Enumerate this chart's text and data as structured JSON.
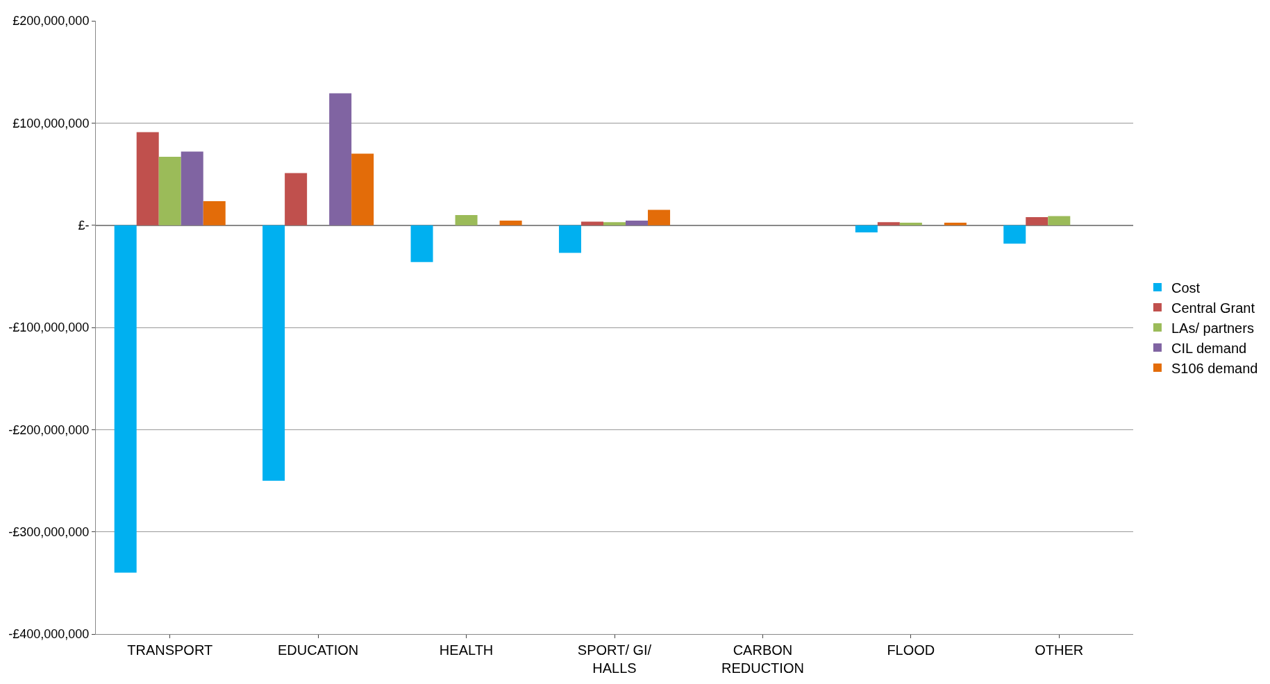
{
  "chart_data": {
    "type": "bar",
    "categories": [
      "TRANSPORT",
      "EDUCATION",
      "HEALTH",
      "SPORT/ GI/ HALLS",
      "CARBON REDUCTION",
      "FLOOD",
      "OTHER"
    ],
    "series": [
      {
        "name": "Cost",
        "color": "#00b0f0",
        "values": [
          -340000000,
          -250000000,
          -36000000,
          -27000000,
          null,
          -7000000,
          -18000000
        ]
      },
      {
        "name": "Central Grant",
        "color": "#c0504d",
        "values": [
          91000000,
          51000000,
          null,
          3500000,
          null,
          3000000,
          8000000
        ]
      },
      {
        "name": "LAs/ partners",
        "color": "#9bbb59",
        "values": [
          67000000,
          null,
          10000000,
          3000000,
          null,
          2500000,
          9000000
        ]
      },
      {
        "name": "CIL demand",
        "color": "#8064a2",
        "values": [
          72000000,
          129000000,
          null,
          4500000,
          null,
          null,
          null
        ]
      },
      {
        "name": "S106 demand",
        "color": "#e36c09",
        "values": [
          23500000,
          70000000,
          4500000,
          15000000,
          null,
          2500000,
          null
        ]
      }
    ],
    "ylim": [
      -400000000,
      200000000
    ],
    "yticks": [
      {
        "value": -400000000,
        "label": "-£400,000,000"
      },
      {
        "value": -300000000,
        "label": "-£300,000,000"
      },
      {
        "value": -200000000,
        "label": "-£200,000,000"
      },
      {
        "value": -100000000,
        "label": "-£100,000,000"
      },
      {
        "value": 0,
        "label": "£-"
      },
      {
        "value": 100000000,
        "label": "£100,000,000"
      },
      {
        "value": 200000000,
        "label": "£200,000,000"
      }
    ],
    "grid": "y",
    "legend": "right"
  }
}
